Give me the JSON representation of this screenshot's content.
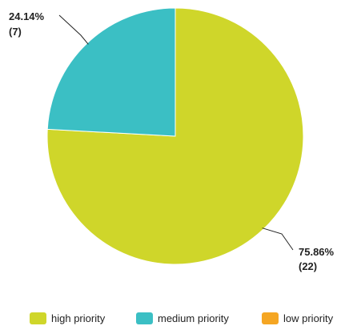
{
  "chart_data": {
    "type": "pie",
    "slices": [
      {
        "name": "high priority",
        "value": 22,
        "percent_label": "75.86%",
        "count_label": "(22)",
        "color": "#cfd62a"
      },
      {
        "name": "medium priority",
        "value": 7,
        "percent_label": "24.14%",
        "count_label": "(7)",
        "color": "#3bbfc4"
      },
      {
        "name": "low priority",
        "value": 0,
        "percent_label": "",
        "count_label": "",
        "color": "#f5a623"
      }
    ],
    "legend": {
      "position": "bottom",
      "items": [
        {
          "label": "high priority",
          "color": "#cfd62a"
        },
        {
          "label": "medium priority",
          "color": "#3bbfc4"
        },
        {
          "label": "low priority",
          "color": "#f5a623"
        }
      ]
    },
    "start_angle_deg": 0,
    "direction": "clockwise"
  }
}
